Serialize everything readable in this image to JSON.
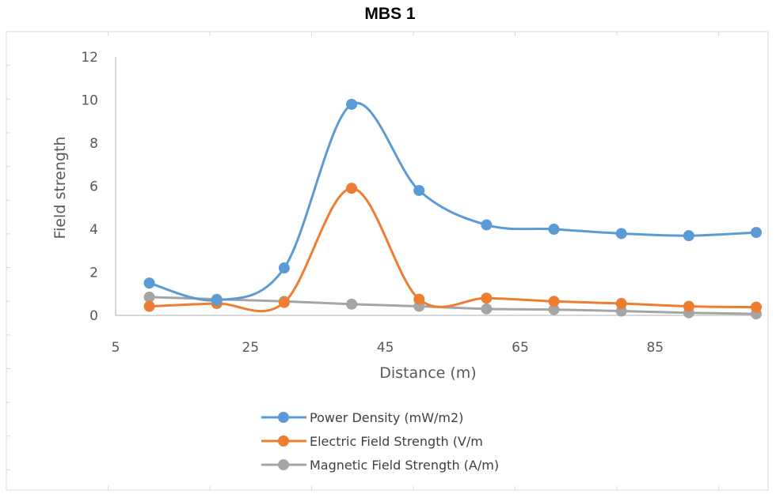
{
  "chart_data": {
    "type": "line",
    "title": "MBS 1",
    "xlabel": "Distance (m)",
    "ylabel": "Field strength",
    "xlim": [
      5,
      100
    ],
    "ylim": [
      0,
      12
    ],
    "x_ticks": [
      5,
      25,
      45,
      65,
      85
    ],
    "y_ticks": [
      0,
      2,
      4,
      6,
      8,
      10,
      12
    ],
    "grid": false,
    "smooth": true,
    "legend_position": "bottom",
    "x": [
      10,
      20,
      30,
      40,
      50,
      60,
      70,
      80,
      90,
      100
    ],
    "series": [
      {
        "name": "Power Density (mW/m2)",
        "color": "#5B9BD5",
        "values": [
          1.5,
          0.7,
          2.2,
          9.8,
          5.8,
          4.2,
          4.0,
          3.8,
          3.7,
          3.85
        ]
      },
      {
        "name": "Electric Field Strength (V/m",
        "color": "#ED7D31",
        "values": [
          0.42,
          0.55,
          0.6,
          5.9,
          0.75,
          0.8,
          0.65,
          0.55,
          0.42,
          0.38
        ]
      },
      {
        "name": "Magnetic Field Strength (A/m)",
        "color": "#A5A5A5",
        "values": [
          0.85,
          0.75,
          0.65,
          0.52,
          0.42,
          0.3,
          0.27,
          0.2,
          0.12,
          0.07
        ]
      }
    ]
  }
}
